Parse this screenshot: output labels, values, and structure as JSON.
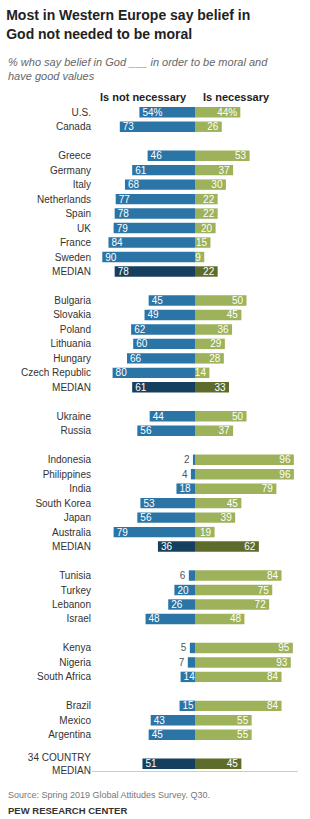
{
  "chart_data": {
    "type": "bar",
    "title": "Most in Western Europe say belief in\nGod not needed to be moral",
    "subtitle": "% who say belief in God ___ in order to be moral and\nhave good values",
    "orientation": "horizontal",
    "data_labels": true,
    "tick_labels": "y",
    "xlim": [
      0,
      100
    ],
    "categories": [
      "U.S.",
      "Canada",
      null,
      "Greece",
      "Germany",
      "Italy",
      "Netherlands",
      "Spain",
      "UK",
      "France",
      "Sweden",
      "MEDIAN",
      null,
      "Bulgaria",
      "Slovakia",
      "Poland",
      "Lithuania",
      "Hungary",
      "Czech Republic",
      "MEDIAN",
      null,
      "Ukraine",
      "Russia",
      null,
      "Indonesia",
      "Philippines",
      "India",
      "South Korea",
      "Japan",
      "Australia",
      "MEDIAN",
      null,
      "Tunisia",
      "Turkey",
      "Lebanon",
      "Israel",
      null,
      "Kenya",
      "Nigeria",
      "South Africa",
      null,
      "Brazil",
      "Mexico",
      "Argentina",
      null,
      "34 COUNTRY\nMEDIAN"
    ],
    "series": [
      {
        "name": "Is not necessary",
        "values": [
          54,
          73,
          null,
          46,
          61,
          68,
          77,
          78,
          79,
          84,
          90,
          78,
          null,
          45,
          49,
          62,
          60,
          66,
          80,
          61,
          null,
          44,
          56,
          null,
          2,
          4,
          18,
          53,
          56,
          79,
          36,
          null,
          6,
          20,
          26,
          48,
          null,
          5,
          7,
          14,
          null,
          15,
          43,
          45,
          null,
          51
        ],
        "value_labels": [
          "54%",
          "73",
          null,
          "46",
          "61",
          "68",
          "77",
          "78",
          "79",
          "84",
          "90",
          "78",
          null,
          "45",
          "49",
          "62",
          "60",
          "66",
          "80",
          "61",
          null,
          "44",
          "56",
          null,
          "2",
          "4",
          "18",
          "53",
          "56",
          "79",
          "36",
          null,
          "6",
          "20",
          "26",
          "48",
          null,
          "5",
          "7",
          "14",
          null,
          "15",
          "43",
          "45",
          null,
          "51"
        ],
        "colors": [
          "#2b74a6",
          "#2b74a6",
          null,
          "#2b74a6",
          "#2b74a6",
          "#2b74a6",
          "#2b74a6",
          "#2b74a6",
          "#2b74a6",
          "#2b74a6",
          "#2b74a6",
          "#153f5e",
          null,
          "#2b74a6",
          "#2b74a6",
          "#2b74a6",
          "#2b74a6",
          "#2b74a6",
          "#2b74a6",
          "#153f5e",
          null,
          "#2b74a6",
          "#2b74a6",
          null,
          "#2b74a6",
          "#2b74a6",
          "#2b74a6",
          "#2b74a6",
          "#2b74a6",
          "#2b74a6",
          "#153f5e",
          null,
          "#2b74a6",
          "#2b74a6",
          "#2b74a6",
          "#2b74a6",
          null,
          "#2b74a6",
          "#2b74a6",
          "#2b74a6",
          null,
          "#2b74a6",
          "#2b74a6",
          "#2b74a6",
          null,
          "#153f5e"
        ]
      },
      {
        "name": "Is necessary",
        "values": [
          44,
          26,
          null,
          53,
          37,
          30,
          22,
          22,
          20,
          15,
          9,
          22,
          null,
          50,
          45,
          36,
          29,
          28,
          14,
          33,
          null,
          50,
          37,
          null,
          96,
          96,
          79,
          45,
          39,
          19,
          62,
          null,
          84,
          75,
          72,
          48,
          null,
          95,
          93,
          84,
          null,
          84,
          55,
          55,
          null,
          45
        ],
        "value_labels": [
          "44%",
          "26",
          null,
          "53",
          "37",
          "30",
          "22",
          "22",
          "20",
          "15",
          "9",
          "22",
          null,
          "50",
          "45",
          "36",
          "29",
          "28",
          "14",
          "33",
          null,
          "50",
          "37",
          null,
          "96",
          "96",
          "79",
          "45",
          "39",
          "19",
          "62",
          null,
          "84",
          "75",
          "72",
          "48",
          null,
          "95",
          "93",
          "84",
          null,
          "84",
          "55",
          "55",
          null,
          "45"
        ],
        "colors": [
          "#9db25a",
          "#9db25a",
          null,
          "#9db25a",
          "#9db25a",
          "#9db25a",
          "#9db25a",
          "#9db25a",
          "#9db25a",
          "#9db25a",
          "#9db25a",
          "#5d6c2a",
          null,
          "#9db25a",
          "#9db25a",
          "#9db25a",
          "#9db25a",
          "#9db25a",
          "#9db25a",
          "#5d6c2a",
          null,
          "#9db25a",
          "#9db25a",
          null,
          "#9db25a",
          "#9db25a",
          "#9db25a",
          "#9db25a",
          "#9db25a",
          "#9db25a",
          "#5d6c2a",
          null,
          "#9db25a",
          "#9db25a",
          "#9db25a",
          "#9db25a",
          null,
          "#9db25a",
          "#9db25a",
          "#9db25a",
          null,
          "#9db25a",
          "#9db25a",
          "#9db25a",
          null,
          "#5d6c2a"
        ]
      }
    ],
    "source": "Source: Spring 2019 Global Attitudes Survey. Q30.",
    "credit": "PEW RESEARCH CENTER"
  }
}
